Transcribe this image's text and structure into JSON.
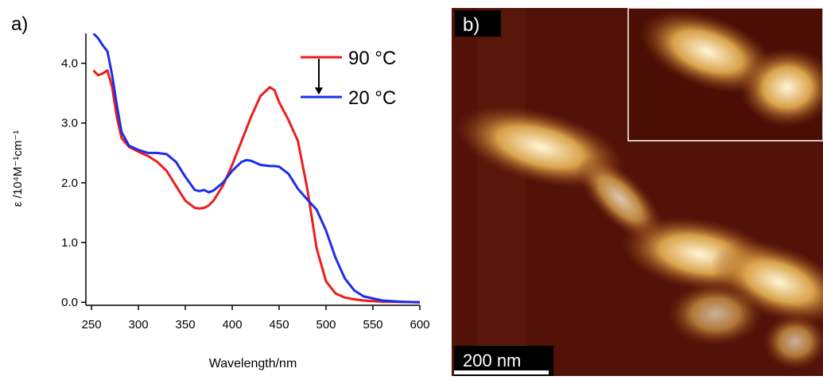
{
  "panel_labels": {
    "a": "a)",
    "b": "b)"
  },
  "scale_bar": "200 nm",
  "chart_data": {
    "type": "line",
    "x_label": "Wavelength/nm",
    "y_label": "ε /10⁴M⁻¹cm⁻¹",
    "x": [
      252,
      257,
      262,
      267,
      272,
      277,
      282,
      290,
      300,
      310,
      320,
      330,
      340,
      350,
      360,
      365,
      370,
      375,
      380,
      390,
      400,
      410,
      415,
      420,
      430,
      440,
      445,
      450,
      460,
      470,
      480,
      490,
      500,
      510,
      520,
      530,
      540,
      560,
      580,
      600
    ],
    "series": [
      {
        "name": "90 °C",
        "color": "#ee1c1c",
        "values": [
          3.88,
          3.8,
          3.83,
          3.88,
          3.6,
          3.1,
          2.75,
          2.6,
          2.52,
          2.45,
          2.35,
          2.2,
          1.95,
          1.7,
          1.58,
          1.57,
          1.58,
          1.62,
          1.7,
          1.95,
          2.3,
          2.7,
          2.9,
          3.1,
          3.45,
          3.6,
          3.55,
          3.35,
          3.05,
          2.7,
          1.9,
          0.9,
          0.35,
          0.15,
          0.08,
          0.05,
          0.03,
          0.01,
          0.005,
          0
        ]
      },
      {
        "name": "20 °C",
        "color": "#1c2ee8",
        "values": [
          4.5,
          4.42,
          4.3,
          4.2,
          3.8,
          3.3,
          2.85,
          2.62,
          2.55,
          2.5,
          2.5,
          2.48,
          2.35,
          2.1,
          1.88,
          1.86,
          1.88,
          1.84,
          1.87,
          2.0,
          2.2,
          2.35,
          2.38,
          2.37,
          2.3,
          2.28,
          2.28,
          2.27,
          2.15,
          1.9,
          1.72,
          1.55,
          1.2,
          0.75,
          0.4,
          0.2,
          0.1,
          0.03,
          0.01,
          0
        ]
      }
    ],
    "xlim": [
      244,
      600
    ],
    "ylim": [
      -0.05,
      4.5
    ],
    "xticks": [
      250,
      300,
      350,
      400,
      450,
      500,
      550,
      600
    ],
    "yticks": [
      {
        "value": 0,
        "label": "0.0"
      },
      {
        "value": 1,
        "label": "1.0"
      },
      {
        "value": 2,
        "label": "2.0"
      },
      {
        "value": 3,
        "label": "3.0"
      },
      {
        "value": 4,
        "label": "4.0"
      }
    ]
  }
}
